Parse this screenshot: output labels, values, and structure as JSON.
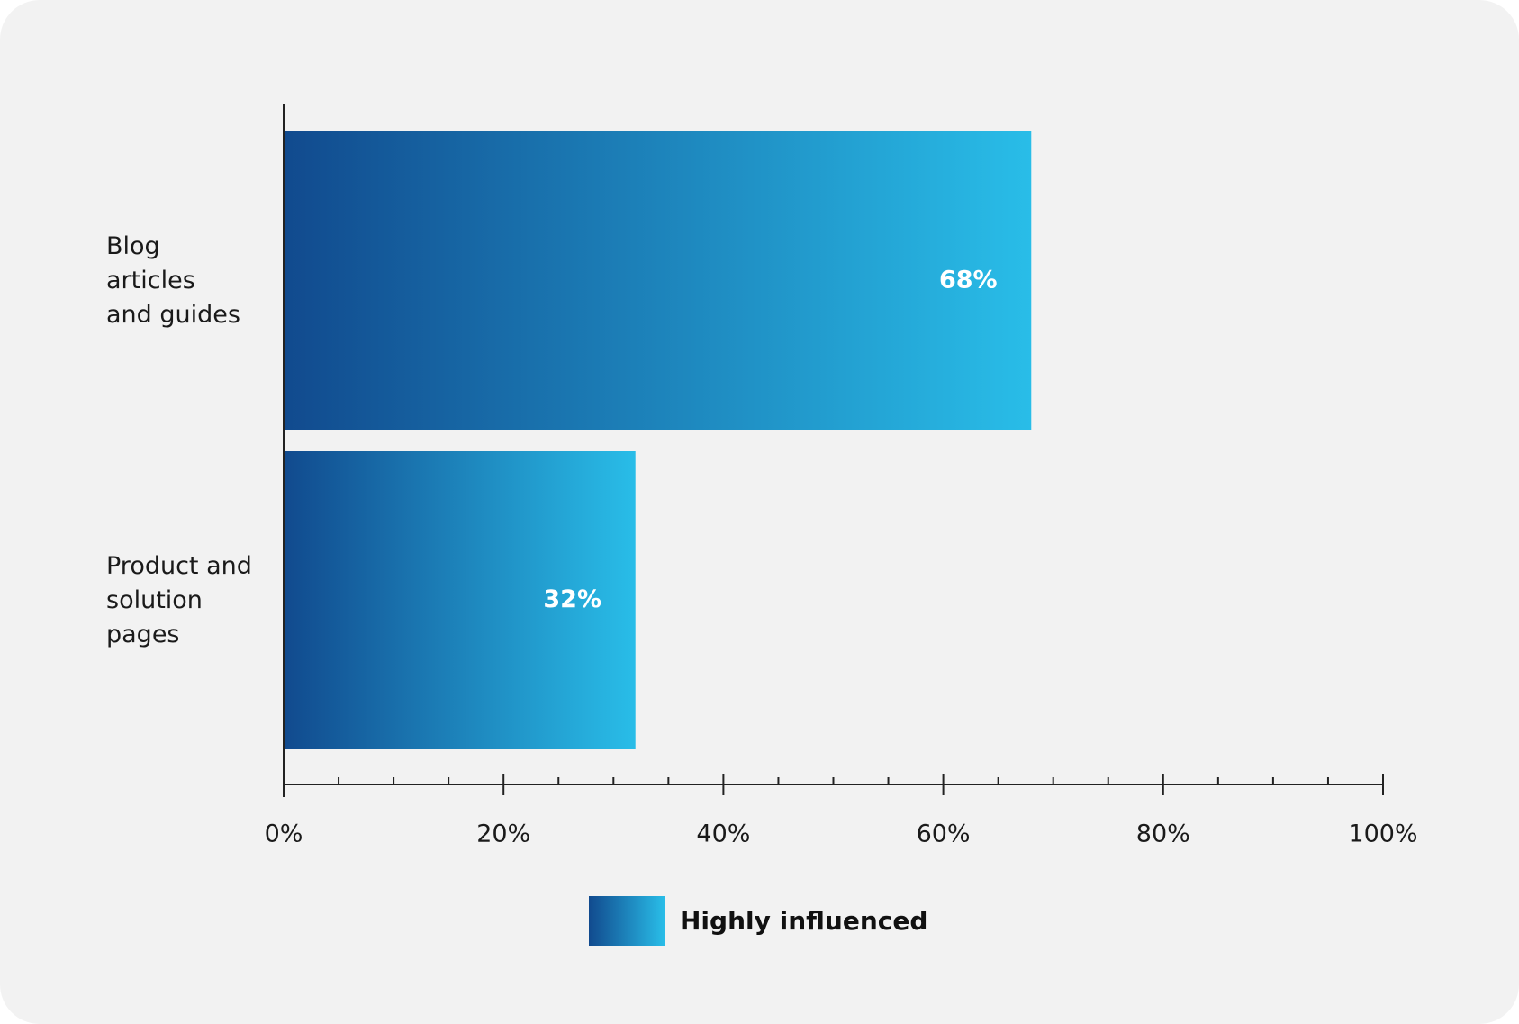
{
  "chart_data": {
    "type": "hbar",
    "categories": [
      "Blog\narticles\nand guides",
      "Product and\nsolution\npages"
    ],
    "series": [
      {
        "name": "Highly influenced",
        "gradient": [
          "#114a8e",
          "#29bde8"
        ],
        "values": [
          68,
          32
        ],
        "value_labels": [
          "68%",
          "32%"
        ]
      }
    ],
    "xlim": [
      0,
      100
    ],
    "xticks": [
      {
        "value": 0,
        "label": "0%"
      },
      {
        "value": 20,
        "label": "20%"
      },
      {
        "value": 40,
        "label": "40%"
      },
      {
        "value": 60,
        "label": "60%"
      },
      {
        "value": 80,
        "label": "80%"
      },
      {
        "value": 100,
        "label": "100%"
      }
    ],
    "xminorticks": [
      5,
      10,
      15,
      25,
      30,
      35,
      45,
      50,
      55,
      65,
      70,
      75,
      85,
      90,
      95
    ]
  }
}
